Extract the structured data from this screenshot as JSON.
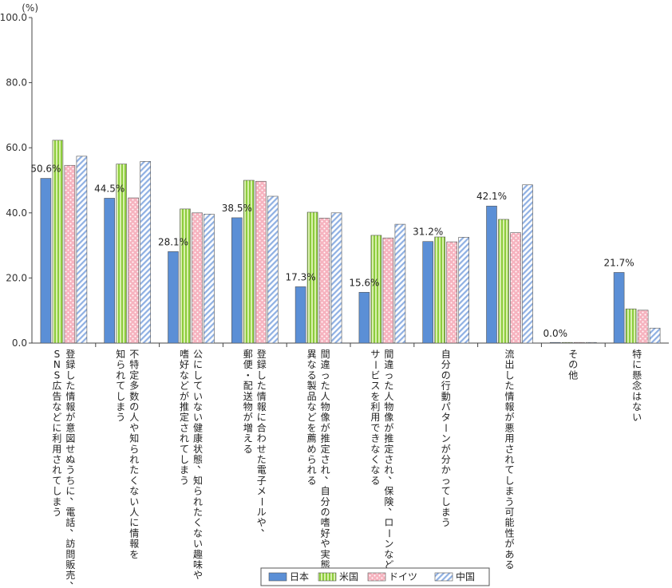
{
  "colors": {
    "日本": "#5b8fd6",
    "米国": "#b7e27a",
    "ドイツ": "#f6b8c3",
    "中国": "#c9d8f2"
  },
  "chart_data": {
    "type": "bar",
    "ylabel": "(%)",
    "ylim": [
      0,
      100
    ],
    "yticks": [
      "0.0",
      "20.0",
      "40.0",
      "60.0",
      "80.0",
      "100.0"
    ],
    "categories": [
      [
        "登録した情報が意図せぬうちに、電話、訪問販売、",
        "SNS広告などに利用されてしまう"
      ],
      [
        "不特定多数の人や知られたくない人に情報を",
        "知られてしまう"
      ],
      [
        "公にしていない健康状態、知られたくない趣味や",
        "嗜好などが推定されてしまう"
      ],
      [
        "登録した情報に合わせた電子メールや、",
        "郵便・配送物が増える"
      ],
      [
        "間違った人物像が推定され、自分の嗜好や実態と",
        "異なる製品などを薦められる"
      ],
      [
        "間違った人物像が推定され、保険、ローンなどの",
        "サービスを利用できなくなる"
      ],
      [
        "自分の行動パターンが分かってしまう"
      ],
      [
        "流出した情報が悪用されてしまう可能性がある"
      ],
      [
        "その他"
      ],
      [
        "特に懸念はない"
      ]
    ],
    "series": [
      {
        "name": "日本",
        "values": [
          50.6,
          44.5,
          28.1,
          38.5,
          17.3,
          15.6,
          31.2,
          42.1,
          0.0,
          21.7
        ]
      },
      {
        "name": "米国",
        "values": [
          62.3,
          55.0,
          41.2,
          50.0,
          40.2,
          33.1,
          32.6,
          38.0,
          0.0,
          10.5
        ]
      },
      {
        "name": "ドイツ",
        "values": [
          54.6,
          44.6,
          40.0,
          49.7,
          38.4,
          32.3,
          31.1,
          33.9,
          0.0,
          10.1
        ]
      },
      {
        "name": "中国",
        "values": [
          57.4,
          55.8,
          39.6,
          45.1,
          40.0,
          36.5,
          32.5,
          48.6,
          0.0,
          4.6
        ]
      }
    ],
    "data_labels": [
      "50.6%",
      "44.5%",
      "28.1%",
      "38.5%",
      "17.3%",
      "15.6%",
      "31.2%",
      "42.1%",
      "0.0%",
      "21.7%"
    ],
    "legend": [
      "日本",
      "米国",
      "ドイツ",
      "中国"
    ],
    "legend_position": "bottom-center"
  }
}
